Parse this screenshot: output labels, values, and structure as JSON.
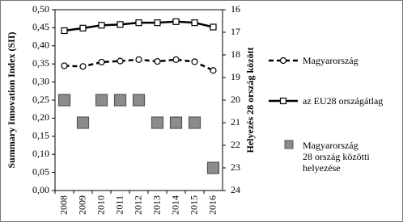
{
  "chart_data": {
    "type": "line",
    "categories": [
      "2008",
      "2009",
      "2010",
      "2011",
      "2012",
      "2013",
      "2014",
      "2015",
      "2016"
    ],
    "y_label": "Summary Innovation Index (SII)",
    "y2_label": "Helyezés 28 ország között",
    "ylim": [
      0,
      0.5
    ],
    "yticks": [
      {
        "value": 0,
        "label": "0,00"
      },
      {
        "value": 0.05,
        "label": "0,05"
      },
      {
        "value": 0.1,
        "label": "0,10"
      },
      {
        "value": 0.15,
        "label": "0,15"
      },
      {
        "value": 0.2,
        "label": "0,20"
      },
      {
        "value": 0.25,
        "label": "0,25"
      },
      {
        "value": 0.3,
        "label": "0,30"
      },
      {
        "value": 0.35,
        "label": "0,35"
      },
      {
        "value": 0.4,
        "label": "0,40"
      },
      {
        "value": 0.45,
        "label": "0,45"
      },
      {
        "value": 0.5,
        "label": "0,50"
      }
    ],
    "y2lim": [
      24,
      16
    ],
    "y2ticks": [
      24,
      23,
      22,
      21,
      20,
      19,
      18,
      17,
      16
    ],
    "legend": "right",
    "series": [
      {
        "name": "Magyarország",
        "color": "#000000",
        "line_style": "dashed",
        "marker": "circle",
        "values": [
          0.345,
          0.343,
          0.355,
          0.358,
          0.362,
          0.357,
          0.362,
          0.356,
          0.332
        ]
      },
      {
        "name": "az EU28 országátlag",
        "color": "#000000",
        "line_style": "solid",
        "marker": "square",
        "values": [
          0.442,
          0.449,
          0.457,
          0.459,
          0.464,
          0.464,
          0.467,
          0.464,
          0.452
        ]
      },
      {
        "name": "Magyarország\n28 ország közötti\nhelyezése",
        "color": "#8c8c8c",
        "line_style": "none",
        "marker": "square",
        "axis": "y2",
        "values": [
          20,
          21,
          20,
          20,
          20,
          21,
          21,
          21,
          23
        ]
      }
    ]
  }
}
